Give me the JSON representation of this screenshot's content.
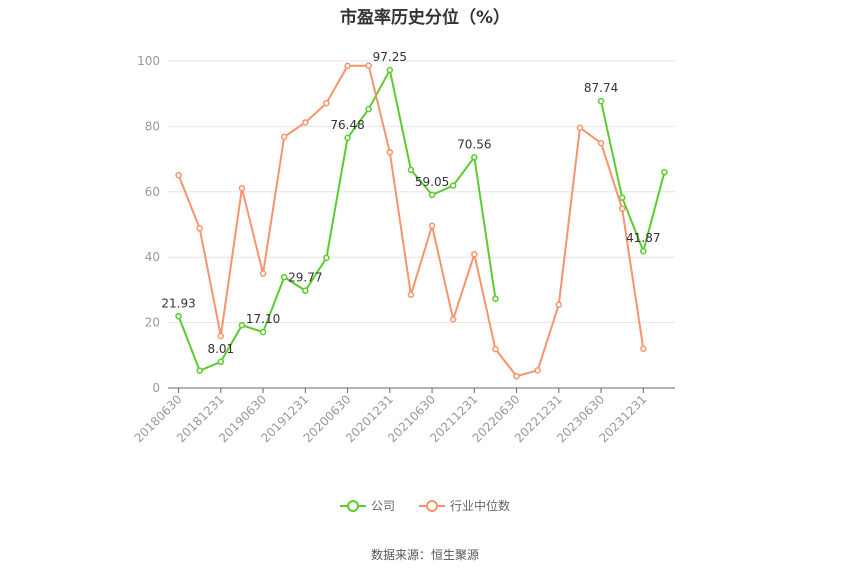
{
  "chart_data": {
    "type": "line",
    "title": "市盈率历史分位（%）",
    "xlabel": "",
    "ylabel": "",
    "ylim": [
      0,
      100
    ],
    "yticks": [
      0,
      20,
      40,
      60,
      80,
      100
    ],
    "grid": true,
    "legend_position": "bottom",
    "x": [
      "20180630",
      "20180930",
      "20181231",
      "20190331",
      "20190630",
      "20190930",
      "20191231",
      "20200331",
      "20200630",
      "20200930",
      "20201231",
      "20210331",
      "20210630",
      "20210930",
      "20211231",
      "20220331",
      "20220630",
      "20220930",
      "20221231",
      "20230331",
      "20230630",
      "20230930",
      "20231231",
      "20240331"
    ],
    "xtick_labels": [
      "20180630",
      "20181231",
      "20190630",
      "20191231",
      "20200630",
      "20201231",
      "20210630",
      "20211231",
      "20220630",
      "20221231",
      "20230630",
      "20231231"
    ],
    "series": [
      {
        "name": "公司",
        "color": "#5ccb2f",
        "values": [
          21.93,
          5.3,
          8.01,
          19.2,
          17.1,
          33.9,
          29.77,
          39.8,
          76.48,
          85.3,
          97.25,
          66.7,
          59.05,
          61.9,
          70.56,
          27.3,
          null,
          null,
          null,
          null,
          87.74,
          58.2,
          41.87,
          66.0
        ],
        "labels": {
          "0": "21.93",
          "2": "8.01",
          "4": "17.10",
          "6": "29.77",
          "8": "76.48",
          "10": "97.25",
          "12": "59.05",
          "14": "70.56",
          "20": "87.74",
          "22": "41.87"
        }
      },
      {
        "name": "行业中位数",
        "color": "#f7946b",
        "values": [
          65.1,
          48.8,
          15.9,
          61.1,
          35.0,
          76.8,
          81.2,
          87.1,
          98.5,
          98.6,
          72.1,
          28.5,
          49.6,
          21.0,
          40.9,
          11.9,
          3.6,
          5.4,
          25.5,
          79.6,
          74.9,
          54.8,
          12.0,
          null
        ]
      }
    ]
  },
  "legend": [
    {
      "name": "公司",
      "color": "#5ccb2f"
    },
    {
      "name": "行业中位数",
      "color": "#f7946b"
    }
  ],
  "source": "数据来源：恒生聚源"
}
